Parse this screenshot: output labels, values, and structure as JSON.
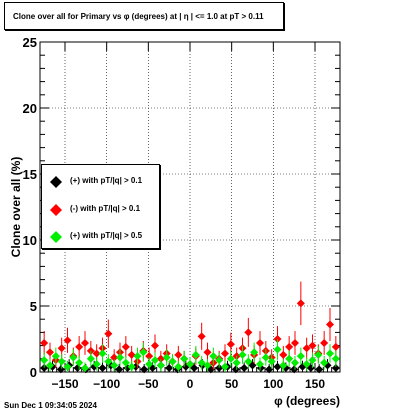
{
  "chart_data": {
    "type": "scatter",
    "title": "Clone  over all for Primary vs φ (degrees) at |   η  | <= 1.0 at pT > 0.11",
    "xlabel": "φ (degrees)",
    "ylabel": "Clone  over all (%)",
    "xlim": [
      -180,
      180
    ],
    "ylim": [
      0,
      25
    ],
    "x_ticks": [
      -150,
      -100,
      -50,
      0,
      50,
      100,
      150
    ],
    "x_tick_labels": [
      "−150",
      "−100",
      "−50",
      "0",
      "50",
      "100",
      "150"
    ],
    "y_ticks": [
      0,
      5,
      10,
      15,
      20,
      25
    ],
    "y_tick_labels": [
      "0",
      "5",
      "10",
      "15",
      "20",
      "25"
    ],
    "grid": true,
    "legend_position": "left-middle",
    "series": [
      {
        "name": "(+) with pT/|q| > 0.1",
        "color": "#000000",
        "x": [
          -175,
          -165,
          -155,
          -145,
          -135,
          -125,
          -115,
          -105,
          -95,
          -85,
          -75,
          -65,
          -55,
          -45,
          -35,
          -25,
          -15,
          -5,
          5,
          15,
          25,
          35,
          45,
          55,
          65,
          75,
          85,
          95,
          105,
          115,
          125,
          135,
          145,
          155,
          165,
          175
        ],
        "y": [
          0.3,
          0.4,
          0.2,
          0.5,
          0.3,
          0.2,
          0.4,
          0.3,
          0.5,
          0.2,
          0.3,
          0.4,
          0.2,
          0.3,
          0.5,
          0.3,
          0.2,
          0.4,
          0.3,
          0.5,
          0.2,
          0.3,
          0.4,
          0.2,
          0.3,
          0.5,
          0.3,
          0.2,
          0.4,
          0.3,
          0.2,
          0.4,
          0.3,
          0.2,
          0.5,
          0.3
        ]
      },
      {
        "name": "(-) with pT/|q| > 0.1",
        "color": "#ff0000",
        "x": [
          -175,
          -168,
          -161,
          -154,
          -147,
          -140,
          -133,
          -126,
          -119,
          -112,
          -105,
          -98,
          -91,
          -84,
          -77,
          -70,
          -63,
          -56,
          -49,
          -42,
          -35,
          -28,
          -21,
          -14,
          -7,
          0,
          7,
          14,
          21,
          28,
          35,
          42,
          49,
          56,
          63,
          70,
          77,
          84,
          91,
          98,
          105,
          112,
          119,
          126,
          133,
          140,
          147,
          154,
          161,
          168,
          175
        ],
        "y": [
          2.2,
          1.5,
          0.9,
          1.8,
          2.4,
          1.2,
          1.9,
          2.2,
          1.6,
          1.4,
          1.8,
          2.9,
          1.1,
          1.5,
          1.9,
          1.3,
          0.8,
          1.6,
          1.2,
          2.0,
          1.0,
          1.4,
          0.8,
          1.3,
          1.0,
          0.6,
          1.2,
          2.7,
          1.5,
          0.7,
          1.0,
          1.4,
          2.1,
          1.2,
          1.8,
          3.0,
          1.3,
          2.2,
          1.6,
          1.1,
          2.5,
          1.3,
          1.9,
          2.2,
          5.2,
          1.8,
          2.0,
          1.4,
          2.2,
          3.6,
          1.9
        ]
      },
      {
        "name": "(+) with pT/|q| > 0.5",
        "color": "#00ee00",
        "x": [
          -175,
          -168,
          -161,
          -154,
          -147,
          -140,
          -133,
          -126,
          -119,
          -112,
          -105,
          -98,
          -91,
          -84,
          -77,
          -70,
          -63,
          -56,
          -49,
          -42,
          -35,
          -28,
          -21,
          -14,
          -7,
          0,
          7,
          14,
          21,
          28,
          35,
          42,
          49,
          56,
          63,
          70,
          77,
          84,
          91,
          98,
          105,
          112,
          119,
          126,
          133,
          140,
          147,
          154,
          161,
          168,
          175
        ],
        "y": [
          0.9,
          0.5,
          1.2,
          0.8,
          0.4,
          1.1,
          0.7,
          0.3,
          1.0,
          0.6,
          1.4,
          0.8,
          0.5,
          1.1,
          0.7,
          0.4,
          1.2,
          1.5,
          0.6,
          0.9,
          0.5,
          1.1,
          0.8,
          0.4,
          1.0,
          0.6,
          1.3,
          0.7,
          0.5,
          1.2,
          0.9,
          0.4,
          1.0,
          0.7,
          1.3,
          0.8,
          1.5,
          0.6,
          1.1,
          0.8,
          1.7,
          0.5,
          1.0,
          0.7,
          1.2,
          0.6,
          0.9,
          1.3,
          0.7,
          1.4,
          1.0
        ]
      }
    ]
  },
  "footer_text": "Sun Dec  1 09:34:05 2024"
}
